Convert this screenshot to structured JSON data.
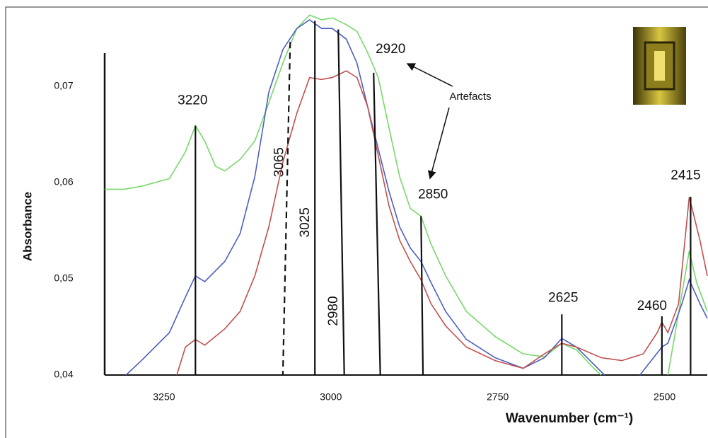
{
  "chart_data": {
    "type": "line",
    "x_label": "Wavenumber  (cm⁻¹)",
    "y_label": "Absorbance",
    "xlim": [
      3339,
      2436
    ],
    "ylim": [
      0.04,
      0.078
    ],
    "xticks": [
      3250,
      3000,
      2750,
      2500
    ],
    "yticks": [
      {
        "value": 0.04,
        "label": "0,04"
      },
      {
        "value": 0.05,
        "label": "0,05"
      },
      {
        "value": 0.06,
        "label": "0,06"
      },
      {
        "value": 0.07,
        "label": "0,07"
      }
    ],
    "series": [
      {
        "color": "#78d86a",
        "x": [
          3339,
          3310,
          3284,
          3242,
          3218,
          3203,
          3189,
          3173,
          3159,
          3136,
          3114,
          3093,
          3072,
          3051,
          3032,
          3014,
          2998,
          2977,
          2961,
          2945,
          2929,
          2913,
          2897,
          2881,
          2865,
          2850,
          2828,
          2797,
          2754,
          2712,
          2680,
          2654,
          2632,
          2606,
          2595,
          2560,
          2495,
          2484,
          2463,
          2452,
          2436
        ],
        "values": [
          0.0593,
          0.0593,
          0.0596,
          0.0604,
          0.0632,
          0.0659,
          0.0643,
          0.0617,
          0.0612,
          0.0624,
          0.0643,
          0.0683,
          0.0724,
          0.076,
          0.0774,
          0.0769,
          0.0771,
          0.0764,
          0.0757,
          0.0735,
          0.0709,
          0.0657,
          0.0606,
          0.0573,
          0.0565,
          0.0536,
          0.0503,
          0.0466,
          0.044,
          0.0422,
          0.0419,
          0.0433,
          0.0426,
          0.0407,
          0.04,
          null,
          0.04,
          0.0444,
          0.0529,
          0.0496,
          0.0466
        ]
      },
      {
        "color": "#4d5fc2",
        "x": [
          3307,
          3284,
          3242,
          3218,
          3203,
          3189,
          3159,
          3136,
          3114,
          3093,
          3072,
          3051,
          3032,
          3014,
          2998,
          2977,
          2961,
          2945,
          2929,
          2913,
          2897,
          2881,
          2865,
          2850,
          2828,
          2797,
          2754,
          2712,
          2680,
          2654,
          2632,
          2606,
          2590,
          2560,
          2537,
          2504,
          2495,
          2474,
          2463,
          2447,
          2436
        ],
        "values": [
          0.04,
          0.0415,
          0.0444,
          0.0481,
          0.0503,
          0.0497,
          0.0518,
          0.0547,
          0.0606,
          0.0694,
          0.0738,
          0.076,
          0.0769,
          0.076,
          0.076,
          0.0749,
          0.0724,
          0.0679,
          0.0635,
          0.0591,
          0.0554,
          0.0532,
          0.0518,
          0.0496,
          0.0466,
          0.0437,
          0.0418,
          0.0407,
          0.0418,
          0.0438,
          0.0429,
          0.0411,
          0.04,
          null,
          0.04,
          0.0429,
          0.0433,
          0.0474,
          0.0499,
          0.0474,
          0.0459
        ]
      },
      {
        "color": "#c0504d",
        "x": [
          3231,
          3218,
          3203,
          3189,
          3159,
          3136,
          3114,
          3093,
          3072,
          3051,
          3032,
          3014,
          2998,
          2977,
          2961,
          2945,
          2929,
          2913,
          2897,
          2881,
          2865,
          2850,
          2828,
          2797,
          2754,
          2712,
          2680,
          2654,
          2632,
          2595,
          2564,
          2532,
          2511,
          2504,
          2495,
          2479,
          2463,
          2447,
          2436
        ],
        "values": [
          0.04,
          0.0429,
          0.0437,
          0.0431,
          0.0448,
          0.0466,
          0.0503,
          0.0554,
          0.0621,
          0.0672,
          0.0709,
          0.0707,
          0.0709,
          0.0716,
          0.0709,
          0.0679,
          0.0628,
          0.0576,
          0.054,
          0.0518,
          0.0499,
          0.0474,
          0.0451,
          0.0429,
          0.0415,
          0.0407,
          0.0422,
          0.0433,
          0.0429,
          0.0418,
          0.0415,
          0.0422,
          0.0444,
          0.0455,
          0.0444,
          0.0474,
          0.0585,
          0.054,
          0.0503
        ]
      }
    ],
    "markers": [
      {
        "label": "3220",
        "x": [
          3203,
          3203
        ],
        "y": 0.0659,
        "style": "solid"
      },
      {
        "label": "3065",
        "x": [
          3061,
          3072
        ],
        "y": 0.0746,
        "style": "dashed"
      },
      {
        "label": "3025",
        "x": [
          3024,
          3024
        ],
        "y": 0.0768,
        "style": "solid"
      },
      {
        "label": "2980",
        "x": [
          2989,
          2980
        ],
        "y": 0.0759,
        "style": "solid"
      },
      {
        "label": "2920",
        "x": [
          2936,
          2926
        ],
        "y": 0.0714,
        "style": "solid"
      },
      {
        "label": "2850",
        "x": [
          2865,
          2862
        ],
        "y": 0.0565,
        "style": "solid"
      },
      {
        "label": "2625",
        "x": [
          2654,
          2654
        ],
        "y": 0.0463,
        "style": "solid"
      },
      {
        "label": "2460",
        "x": [
          2504,
          2504
        ],
        "y": 0.0461,
        "style": "solid"
      },
      {
        "label": "2415",
        "x": [
          2461,
          2461
        ],
        "y": 0.0585,
        "style": "solid"
      }
    ],
    "annotation": "Artefacts"
  }
}
